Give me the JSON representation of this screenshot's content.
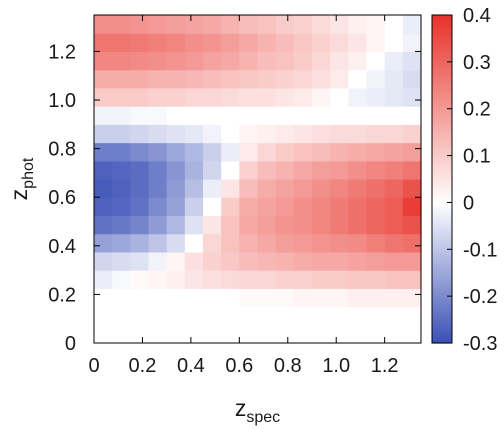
{
  "chart_data": {
    "type": "heatmap",
    "title": "",
    "xlabel": {
      "main": "z",
      "sub": "spec"
    },
    "ylabel": {
      "main": "z",
      "sub": "phot"
    },
    "xlim": [
      0,
      1.35
    ],
    "ylim": [
      0,
      1.35
    ],
    "x_bin_width": 0.075,
    "y_bin_width": 0.075,
    "n_bins": 18,
    "x_ticks": [
      "0",
      "0.2",
      "0.4",
      "0.6",
      "0.8",
      "1.0",
      "1.2"
    ],
    "y_ticks": [
      "0",
      "0.2",
      "0.4",
      "0.6",
      "0.8",
      "1.0",
      "1.2"
    ],
    "colorbar": {
      "min": -0.3,
      "max": 0.4,
      "ticks": [
        "0.4",
        "0.3",
        "0.2",
        "0.1",
        "0",
        "-0.1",
        "-0.2",
        "-0.3"
      ],
      "colors": {
        "negative": "#3a4fb5",
        "zero": "#ffffff",
        "positive": "#e8332b"
      }
    },
    "z_by_row_low_to_high_zphot": [
      [
        0,
        0,
        0,
        0,
        0,
        0,
        0,
        0,
        0,
        0,
        0,
        0,
        0,
        0,
        0,
        0,
        0,
        0
      ],
      [
        0,
        0,
        0,
        0,
        0,
        0,
        0,
        0,
        0,
        0,
        0,
        0,
        0,
        0,
        0,
        0,
        0,
        0
      ],
      [
        0,
        0,
        0,
        0,
        0,
        0,
        0,
        0,
        0.01,
        0.01,
        0.01,
        0.02,
        0.02,
        0.02,
        0.03,
        0.03,
        0.03,
        0.03
      ],
      [
        -0.03,
        -0.01,
        0.01,
        0.02,
        0.03,
        0.05,
        0.06,
        0.07,
        0.08,
        0.08,
        0.09,
        0.09,
        0.1,
        0.1,
        0.11,
        0.11,
        0.12,
        0.12
      ],
      [
        -0.07,
        -0.06,
        -0.05,
        -0.02,
        0.02,
        0.06,
        0.09,
        0.11,
        0.13,
        0.14,
        0.15,
        0.16,
        0.17,
        0.17,
        0.18,
        0.19,
        0.2,
        0.2
      ],
      [
        -0.16,
        -0.15,
        -0.13,
        -0.1,
        -0.06,
        0,
        0.08,
        0.12,
        0.15,
        0.17,
        0.19,
        0.2,
        0.21,
        0.22,
        0.23,
        0.25,
        0.27,
        0.28
      ],
      [
        -0.24,
        -0.23,
        -0.21,
        -0.17,
        -0.12,
        -0.05,
        0.05,
        0.12,
        0.17,
        0.19,
        0.21,
        0.22,
        0.24,
        0.26,
        0.28,
        0.3,
        0.32,
        0.34
      ],
      [
        -0.27,
        -0.26,
        -0.24,
        -0.2,
        -0.16,
        -0.08,
        0,
        0.1,
        0.16,
        0.18,
        0.2,
        0.22,
        0.24,
        0.26,
        0.28,
        0.3,
        0.32,
        0.38
      ],
      [
        -0.28,
        -0.27,
        -0.25,
        -0.22,
        -0.17,
        -0.11,
        -0.03,
        0.05,
        0.13,
        0.16,
        0.18,
        0.2,
        0.22,
        0.24,
        0.26,
        0.28,
        0.3,
        0.34
      ],
      [
        -0.27,
        -0.26,
        -0.25,
        -0.22,
        -0.18,
        -0.13,
        -0.07,
        0,
        0.09,
        0.13,
        0.15,
        0.17,
        0.19,
        0.2,
        0.22,
        0.24,
        0.25,
        0.27
      ],
      [
        -0.22,
        -0.22,
        -0.2,
        -0.18,
        -0.15,
        -0.12,
        -0.08,
        -0.03,
        0.04,
        0.08,
        0.1,
        0.12,
        0.13,
        0.15,
        0.16,
        0.17,
        0.18,
        0.19
      ],
      [
        -0.08,
        -0.08,
        -0.07,
        -0.06,
        -0.05,
        -0.04,
        -0.02,
        0,
        0.02,
        0.03,
        0.04,
        0.05,
        0.06,
        0.07,
        0.07,
        0.08,
        0.08,
        0.09
      ],
      [
        -0.02,
        -0.02,
        -0.01,
        -0.01,
        0,
        0,
        0,
        0,
        0,
        0,
        0,
        0,
        0,
        0,
        0,
        0,
        0,
        0
      ],
      [
        0.1,
        0.1,
        0.1,
        0.09,
        0.09,
        0.08,
        0.08,
        0.07,
        0.06,
        0.06,
        0.05,
        0.04,
        0.02,
        0,
        -0.02,
        -0.03,
        -0.04,
        -0.05
      ],
      [
        0.16,
        0.16,
        0.16,
        0.15,
        0.15,
        0.14,
        0.13,
        0.12,
        0.11,
        0.1,
        0.09,
        0.08,
        0.06,
        0.04,
        0,
        -0.02,
        -0.04,
        -0.06
      ],
      [
        0.24,
        0.24,
        0.23,
        0.22,
        0.21,
        0.2,
        0.18,
        0.17,
        0.15,
        0.13,
        0.12,
        0.1,
        0.08,
        0.05,
        0.03,
        0,
        -0.03,
        -0.05
      ],
      [
        0.27,
        0.27,
        0.26,
        0.25,
        0.24,
        0.22,
        0.21,
        0.19,
        0.17,
        0.15,
        0.13,
        0.11,
        0.09,
        0.07,
        0.05,
        0.02,
        0,
        -0.02
      ],
      [
        0.22,
        0.22,
        0.21,
        0.2,
        0.19,
        0.18,
        0.17,
        0.15,
        0.13,
        0.12,
        0.1,
        0.09,
        0.07,
        0.05,
        0.03,
        0.02,
        0,
        -0.03
      ]
    ]
  }
}
